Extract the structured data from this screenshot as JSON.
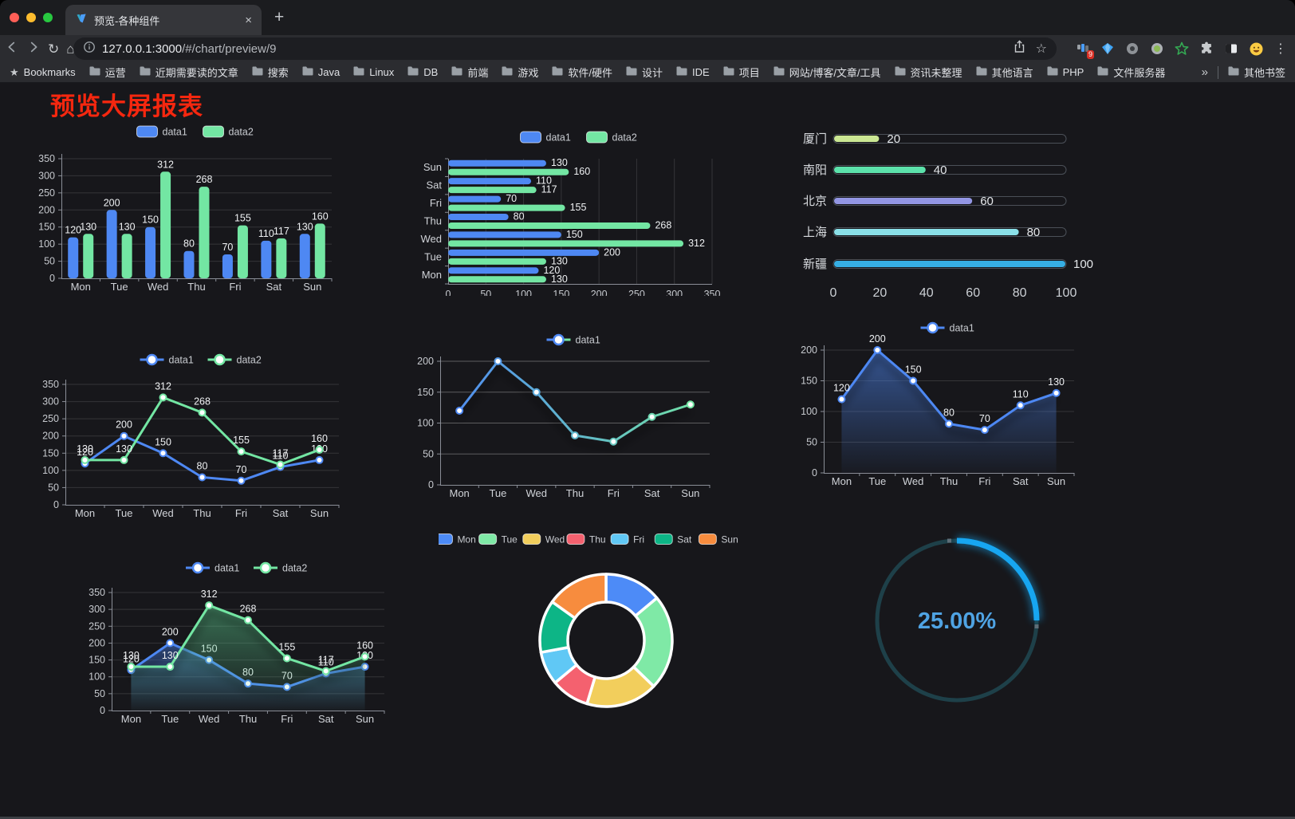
{
  "browser": {
    "tab": {
      "title": "预览-各种组件",
      "close_glyph": "×",
      "new_tab_glyph": "+"
    },
    "url": {
      "host": "127.0.0.1:3000",
      "path": "/#/chart/preview/9"
    },
    "icons": {
      "reload": "↻",
      "home": "⌂",
      "bookmark_star": "☆",
      "menu": "⋮",
      "bookmarks_star": "★",
      "overflow": "»"
    },
    "extensions_badge": "9",
    "bookmarks": {
      "first": "Bookmarks",
      "folders": [
        "运营",
        "近期需要读的文章",
        "搜索",
        "Java",
        "Linux",
        "DB",
        "前端",
        "游戏",
        "软件/硬件",
        "设计",
        "IDE",
        "项目",
        "网站/博客/文章/工具",
        "资讯未整理",
        "其他语言",
        "PHP",
        "文件服务器"
      ],
      "overflow": "»",
      "other": "其他书签"
    }
  },
  "page": {
    "title": "预览大屏报表",
    "title_color": "#F5270F",
    "background": "#17171B"
  },
  "chart_data": [
    {
      "id": "bar-vertical",
      "type": "bar",
      "orientation": "vertical",
      "categories": [
        "Mon",
        "Tue",
        "Wed",
        "Thu",
        "Fri",
        "Sat",
        "Sun"
      ],
      "series": [
        {
          "name": "data1",
          "color": "#4E88F3",
          "values": [
            120,
            200,
            150,
            80,
            70,
            110,
            130
          ]
        },
        {
          "name": "data2",
          "color": "#73E6A3",
          "values": [
            130,
            130,
            312,
            268,
            155,
            117,
            160
          ]
        }
      ],
      "ylim": [
        0,
        350
      ],
      "yticks": [
        0,
        50,
        100,
        150,
        200,
        250,
        300,
        350
      ],
      "legend_position": "top",
      "show_labels": true,
      "grid": true
    },
    {
      "id": "bar-horizontal",
      "type": "bar",
      "orientation": "horizontal",
      "categories": [
        "Mon",
        "Tue",
        "Wed",
        "Thu",
        "Fri",
        "Sat",
        "Sun"
      ],
      "series": [
        {
          "name": "data1",
          "color": "#4E88F3",
          "values": [
            120,
            200,
            150,
            80,
            70,
            110,
            130
          ]
        },
        {
          "name": "data2",
          "color": "#73E6A3",
          "values": [
            130,
            130,
            312,
            268,
            155,
            117,
            160
          ]
        }
      ],
      "xlim": [
        0,
        350
      ],
      "xticks": [
        0,
        50,
        100,
        150,
        200,
        250,
        300,
        350
      ],
      "legend_position": "top",
      "show_labels": true,
      "grid": true
    },
    {
      "id": "progress-list",
      "type": "bar",
      "subtype": "progress-pills",
      "items": [
        {
          "label": "厦门",
          "value": 20,
          "color": "#CBE793"
        },
        {
          "label": "南阳",
          "value": 40,
          "color": "#5CE2AB"
        },
        {
          "label": "北京",
          "value": 60,
          "color": "#9396E4"
        },
        {
          "label": "上海",
          "value": 80,
          "color": "#8AE0E8"
        },
        {
          "label": "新疆",
          "value": 100,
          "color": "#36AEE4"
        }
      ],
      "max": 100,
      "xticks": [
        0,
        20,
        40,
        60,
        80,
        100
      ]
    },
    {
      "id": "line-dual",
      "type": "line",
      "categories": [
        "Mon",
        "Tue",
        "Wed",
        "Thu",
        "Fri",
        "Sat",
        "Sun"
      ],
      "series": [
        {
          "name": "data1",
          "color": "#4E88F3",
          "values": [
            120,
            200,
            150,
            80,
            70,
            110,
            130
          ]
        },
        {
          "name": "data2",
          "color": "#73E6A3",
          "values": [
            130,
            130,
            312,
            268,
            155,
            117,
            160
          ]
        }
      ],
      "ylim": [
        0,
        350
      ],
      "yticks": [
        0,
        50,
        100,
        150,
        200,
        250,
        300,
        350
      ],
      "legend_position": "top",
      "show_labels": true,
      "grid": true
    },
    {
      "id": "line-gradient",
      "type": "line",
      "categories": [
        "Mon",
        "Tue",
        "Wed",
        "Thu",
        "Fri",
        "Sat",
        "Sun"
      ],
      "series": [
        {
          "name": "data1",
          "colors": [
            "#4E88F3",
            "#73E6A3"
          ],
          "values": [
            120,
            200,
            150,
            80,
            70,
            110,
            130
          ]
        }
      ],
      "ylim": [
        0,
        200
      ],
      "yticks": [
        0,
        50,
        100,
        150,
        200
      ],
      "legend_position": "top",
      "show_labels": false,
      "grid": true
    },
    {
      "id": "area-single",
      "type": "area",
      "categories": [
        "Mon",
        "Tue",
        "Wed",
        "Thu",
        "Fri",
        "Sat",
        "Sun"
      ],
      "series": [
        {
          "name": "data1",
          "color": "#4E88F3",
          "area": [
            "rgba(78,136,243,0.55)",
            "rgba(78,136,243,0.03)"
          ],
          "values": [
            120,
            200,
            150,
            80,
            70,
            110,
            130
          ]
        }
      ],
      "ylim": [
        0,
        200
      ],
      "yticks": [
        0,
        50,
        100,
        150,
        200
      ],
      "legend_position": "top",
      "show_labels": true,
      "grid": true
    },
    {
      "id": "area-dual",
      "type": "area",
      "categories": [
        "Mon",
        "Tue",
        "Wed",
        "Thu",
        "Fri",
        "Sat",
        "Sun"
      ],
      "series": [
        {
          "name": "data1",
          "color": "#4E88F3",
          "area": [
            "rgba(78,136,243,0.50)",
            "rgba(78,136,243,0.02)"
          ],
          "values": [
            120,
            200,
            150,
            80,
            70,
            110,
            130
          ]
        },
        {
          "name": "data2",
          "color": "#73E6A3",
          "area": [
            "rgba(90,200,140,0.50)",
            "rgba(90,200,140,0.02)"
          ],
          "values": [
            130,
            130,
            312,
            268,
            155,
            117,
            160
          ]
        }
      ],
      "ylim": [
        0,
        350
      ],
      "yticks": [
        0,
        50,
        100,
        150,
        200,
        250,
        300,
        350
      ],
      "legend_position": "top",
      "show_labels": true,
      "grid": true
    },
    {
      "id": "donut",
      "type": "pie",
      "subtype": "donut",
      "labels": [
        "Mon",
        "Tue",
        "Wed",
        "Thu",
        "Fri",
        "Sat",
        "Sun"
      ],
      "values": [
        120,
        200,
        150,
        80,
        70,
        110,
        130
      ],
      "colors": [
        "#4D8BF7",
        "#7FE9A6",
        "#F2CE5C",
        "#F4616F",
        "#60C8F5",
        "#0DB586",
        "#F78C3E"
      ],
      "legend_position": "top"
    },
    {
      "id": "gauge",
      "type": "gauge",
      "value": 25,
      "max": 100,
      "display": "25.00%",
      "color": "#17A6F1",
      "track_color": "#1E4049",
      "text_color": "#4FA3E3"
    }
  ]
}
